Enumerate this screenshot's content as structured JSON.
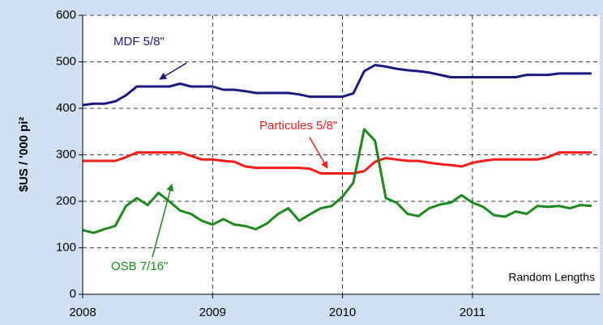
{
  "chart_data": {
    "type": "line",
    "y_label": "$US / '000 pi²",
    "source": "Random Lengths",
    "x": [
      2008,
      2008.083,
      2008.167,
      2008.25,
      2008.333,
      2008.417,
      2008.5,
      2008.583,
      2008.667,
      2008.75,
      2008.833,
      2008.917,
      2009,
      2009.083,
      2009.167,
      2009.25,
      2009.333,
      2009.417,
      2009.5,
      2009.583,
      2009.667,
      2009.75,
      2009.833,
      2009.917,
      2010,
      2010.083,
      2010.167,
      2010.25,
      2010.333,
      2010.417,
      2010.5,
      2010.583,
      2010.667,
      2010.75,
      2010.833,
      2010.917,
      2011,
      2011.083,
      2011.167,
      2011.25,
      2011.333,
      2011.417,
      2011.5,
      2011.583,
      2011.667,
      2011.75,
      2011.833,
      2011.917
    ],
    "series": [
      {
        "name": "MDF 5/8\"",
        "color": "#1a1a80",
        "values": [
          407,
          410,
          410,
          415,
          428,
          447,
          447,
          447,
          447,
          453,
          447,
          447,
          447,
          440,
          440,
          437,
          433,
          433,
          433,
          433,
          430,
          425,
          425,
          425,
          425,
          432,
          480,
          493,
          490,
          485,
          482,
          480,
          477,
          472,
          467,
          467,
          467,
          467,
          467,
          467,
          467,
          472,
          472,
          472,
          475,
          475,
          475,
          475
        ]
      },
      {
        "name": "Particules 5/8\"",
        "color": "#ff1a1a",
        "values": [
          287,
          287,
          287,
          287,
          295,
          305,
          305,
          305,
          305,
          305,
          298,
          290,
          290,
          287,
          285,
          275,
          272,
          272,
          272,
          272,
          272,
          270,
          260,
          260,
          260,
          260,
          265,
          285,
          293,
          290,
          287,
          287,
          283,
          280,
          278,
          275,
          283,
          287,
          290,
          290,
          290,
          290,
          290,
          295,
          305,
          305,
          305,
          305
        ]
      },
      {
        "name": "OSB 7/16\"",
        "color": "#1a8a1a",
        "values": [
          138,
          132,
          140,
          147,
          190,
          207,
          192,
          218,
          200,
          180,
          173,
          158,
          150,
          162,
          150,
          147,
          140,
          152,
          172,
          185,
          158,
          172,
          185,
          190,
          210,
          240,
          355,
          330,
          207,
          197,
          173,
          168,
          185,
          193,
          197,
          213,
          197,
          188,
          170,
          167,
          178,
          173,
          190,
          188,
          190,
          185,
          192,
          190
        ]
      }
    ],
    "xlim": [
      2008,
      2011.98
    ],
    "xticks": [
      2008,
      2009,
      2010,
      2011
    ],
    "ylim": [
      0,
      600
    ],
    "yticks": [
      0,
      100,
      200,
      300,
      400,
      500,
      600
    ],
    "grid": true
  }
}
